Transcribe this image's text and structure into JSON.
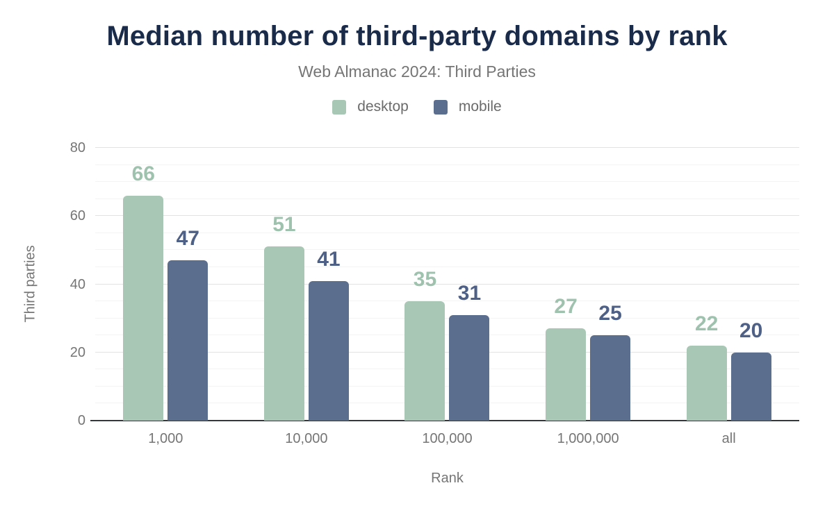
{
  "title": "Median number of third-party domains by rank",
  "subtitle": "Web Almanac 2024: Third Parties",
  "legend": [
    {
      "label": "desktop",
      "color": "#a9c7b5"
    },
    {
      "label": "mobile",
      "color": "#5c6e8e"
    }
  ],
  "colors": {
    "title_text": "#1a2b4a",
    "muted_text": "#757575",
    "legend_text": "#6b6b6b",
    "desktop_series": "#a9c7b5",
    "desktop_label": "#9fc2ae",
    "mobile_series": "#5c6e8e",
    "mobile_label": "#4e6086",
    "gridline_major": "#e2e2e2",
    "gridline_minor": "#f3f3f3",
    "axis_line": "#33383d",
    "background": "#ffffff"
  },
  "chart_data": {
    "type": "bar",
    "title": "Median number of third-party domains by rank",
    "subtitle": "Web Almanac 2024: Third Parties",
    "categories": [
      "1,000",
      "10,000",
      "100,000",
      "1,000,000",
      "all"
    ],
    "series": [
      {
        "name": "desktop",
        "color": "#a9c7b5",
        "label_color": "#9fc2ae",
        "values": [
          66,
          51,
          35,
          27,
          22
        ]
      },
      {
        "name": "mobile",
        "color": "#5c6e8e",
        "label_color": "#4e6086",
        "values": [
          47,
          41,
          31,
          25,
          20
        ]
      }
    ],
    "xlabel": "Rank",
    "ylabel": "Third parties",
    "ylim": [
      0,
      80
    ],
    "yticks": [
      0,
      20,
      40,
      60,
      80
    ],
    "grid": {
      "orientation": "horizontal",
      "major_every": 20,
      "minor_every": 5
    },
    "legend_position": "top",
    "data_labels": true
  }
}
